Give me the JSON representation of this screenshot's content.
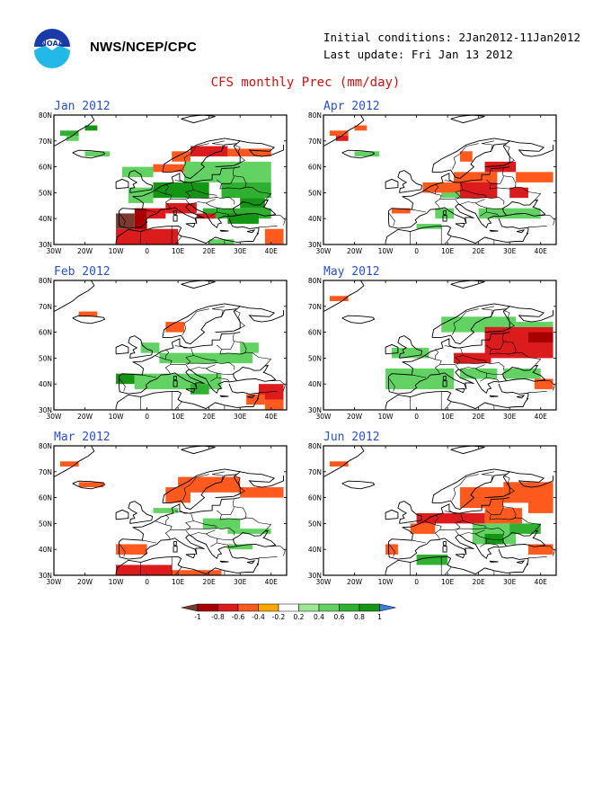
{
  "header": {
    "agency": "NWS/NCEP/CPC",
    "initial_conditions": "Initial conditions: 2Jan2012-11Jan2012",
    "last_update": "Last update: Fri Jan 13 2012",
    "title": "CFS monthly Prec (mm/day)"
  },
  "logo": {
    "icon": "noaa-logo-icon"
  },
  "axes": {
    "x_ticks": [
      "30W",
      "20W",
      "10W",
      "0",
      "10E",
      "20E",
      "30E",
      "40E"
    ],
    "y_ticks": [
      "80N",
      "70N",
      "60N",
      "50N",
      "40N",
      "30N"
    ]
  },
  "colors": {
    "ocean_grid": "#b0b0b0",
    "coast": "#000000"
  },
  "panels": [
    {
      "id": "jan",
      "title": "Jan 2012",
      "anoms": [
        {
          "lon": -28,
          "lat": 72,
          "lon2": -22,
          "lat2": 74,
          "v": 0.6
        },
        {
          "lon": -26,
          "lat": 70,
          "lon2": -22,
          "lat2": 72,
          "v": 0.4
        },
        {
          "lon": -20,
          "lat": 74,
          "lon2": -16,
          "lat2": 76,
          "v": 0.8
        },
        {
          "lon": -20,
          "lat": 64,
          "lon2": -12,
          "lat2": 66,
          "v": 0.4
        },
        {
          "lon": 8,
          "lat": 62,
          "lon2": 14,
          "lat2": 66,
          "v": -0.4
        },
        {
          "lon": 14,
          "lat": 64,
          "lon2": 26,
          "lat2": 68,
          "v": -0.6
        },
        {
          "lon": 26,
          "lat": 64,
          "lon2": 40,
          "lat2": 67,
          "v": -0.4
        },
        {
          "lon": 2,
          "lat": 58,
          "lon2": 12,
          "lat2": 61,
          "v": -0.4
        },
        {
          "lon": -8,
          "lat": 56,
          "lon2": 2,
          "lat2": 60,
          "v": 0.4
        },
        {
          "lon": 12,
          "lat": 54,
          "lon2": 40,
          "lat2": 62,
          "v": 0.4
        },
        {
          "lon": 24,
          "lat": 48,
          "lon2": 40,
          "lat2": 54,
          "v": 0.6
        },
        {
          "lon": 2,
          "lat": 48,
          "lon2": 20,
          "lat2": 54,
          "v": 0.8
        },
        {
          "lon": -6,
          "lat": 46,
          "lon2": 2,
          "lat2": 52,
          "v": 0.4
        },
        {
          "lon": 30,
          "lat": 44,
          "lon2": 38,
          "lat2": 48,
          "v": 0.8
        },
        {
          "lon": 18,
          "lat": 40,
          "lon2": 40,
          "lat2": 44,
          "v": 0.6
        },
        {
          "lon": 26,
          "lat": 38,
          "lon2": 36,
          "lat2": 42,
          "v": 0.8
        },
        {
          "lon": -10,
          "lat": 36,
          "lon2": -4,
          "lat2": 42,
          "v": -1.0
        },
        {
          "lon": -4,
          "lat": 34,
          "lon2": 0,
          "lat2": 44,
          "v": -0.8
        },
        {
          "lon": 0,
          "lat": 40,
          "lon2": 6,
          "lat2": 44,
          "v": -0.6
        },
        {
          "lon": 6,
          "lat": 42,
          "lon2": 16,
          "lat2": 46,
          "v": -0.6
        },
        {
          "lon": -10,
          "lat": 30,
          "lon2": 10,
          "lat2": 36,
          "v": -0.6
        },
        {
          "lon": 16,
          "lat": 40,
          "lon2": 22,
          "lat2": 42,
          "v": -0.6
        },
        {
          "lon": 38,
          "lat": 30,
          "lon2": 44,
          "lat2": 36,
          "v": -0.4
        },
        {
          "lon": 20,
          "lat": 30,
          "lon2": 28,
          "lat2": 32,
          "v": 0.4
        }
      ]
    },
    {
      "id": "apr",
      "title": "Apr 2012",
      "anoms": [
        {
          "lon": -28,
          "lat": 72,
          "lon2": -22,
          "lat2": 74,
          "v": -0.4
        },
        {
          "lon": -26,
          "lat": 70,
          "lon2": -22,
          "lat2": 72,
          "v": -0.6
        },
        {
          "lon": -20,
          "lat": 74,
          "lon2": -16,
          "lat2": 76,
          "v": -0.4
        },
        {
          "lon": -20,
          "lat": 64,
          "lon2": -12,
          "lat2": 66,
          "v": 0.4
        },
        {
          "lon": 14,
          "lat": 62,
          "lon2": 18,
          "lat2": 66,
          "v": -0.4
        },
        {
          "lon": 22,
          "lat": 58,
          "lon2": 32,
          "lat2": 62,
          "v": -0.6
        },
        {
          "lon": 32,
          "lat": 54,
          "lon2": 44,
          "lat2": 58,
          "v": -0.4
        },
        {
          "lon": 12,
          "lat": 54,
          "lon2": 26,
          "lat2": 58,
          "v": -0.4
        },
        {
          "lon": 2,
          "lat": 50,
          "lon2": 24,
          "lat2": 54,
          "v": -0.4
        },
        {
          "lon": 14,
          "lat": 48,
          "lon2": 26,
          "lat2": 54,
          "v": -0.6
        },
        {
          "lon": 30,
          "lat": 48,
          "lon2": 36,
          "lat2": 52,
          "v": -0.6
        },
        {
          "lon": -8,
          "lat": 42,
          "lon2": -2,
          "lat2": 44,
          "v": -0.4
        },
        {
          "lon": 8,
          "lat": 48,
          "lon2": 14,
          "lat2": 50,
          "v": 0.4
        },
        {
          "lon": 6,
          "lat": 40,
          "lon2": 12,
          "lat2": 44,
          "v": 0.4
        },
        {
          "lon": 20,
          "lat": 40,
          "lon2": 40,
          "lat2": 44,
          "v": 0.4
        },
        {
          "lon": 0,
          "lat": 36,
          "lon2": 8,
          "lat2": 38,
          "v": 0.4
        }
      ]
    },
    {
      "id": "feb",
      "title": "Feb 2012",
      "anoms": [
        {
          "lon": -22,
          "lat": 66,
          "lon2": -16,
          "lat2": 68,
          "v": -0.4
        },
        {
          "lon": 6,
          "lat": 60,
          "lon2": 12,
          "lat2": 64,
          "v": -0.4
        },
        {
          "lon": -2,
          "lat": 52,
          "lon2": 4,
          "lat2": 56,
          "v": 0.4
        },
        {
          "lon": 4,
          "lat": 48,
          "lon2": 24,
          "lat2": 52,
          "v": 0.4
        },
        {
          "lon": 24,
          "lat": 48,
          "lon2": 34,
          "lat2": 52,
          "v": 0.4
        },
        {
          "lon": 30,
          "lat": 52,
          "lon2": 36,
          "lat2": 56,
          "v": 0.4
        },
        {
          "lon": -10,
          "lat": 40,
          "lon2": -4,
          "lat2": 44,
          "v": 0.8
        },
        {
          "lon": -4,
          "lat": 38,
          "lon2": 8,
          "lat2": 44,
          "v": 0.4
        },
        {
          "lon": 8,
          "lat": 38,
          "lon2": 24,
          "lat2": 44,
          "v": 0.4
        },
        {
          "lon": 14,
          "lat": 36,
          "lon2": 20,
          "lat2": 40,
          "v": 0.6
        },
        {
          "lon": 36,
          "lat": 34,
          "lon2": 44,
          "lat2": 40,
          "v": -0.6
        },
        {
          "lon": 32,
          "lat": 32,
          "lon2": 38,
          "lat2": 36,
          "v": -0.4
        },
        {
          "lon": 38,
          "lat": 30,
          "lon2": 44,
          "lat2": 34,
          "v": -0.4
        }
      ]
    },
    {
      "id": "may",
      "title": "May 2012",
      "anoms": [
        {
          "lon": -28,
          "lat": 72,
          "lon2": -22,
          "lat2": 74,
          "v": -0.4
        },
        {
          "lon": 8,
          "lat": 60,
          "lon2": 32,
          "lat2": 66,
          "v": 0.4
        },
        {
          "lon": 32,
          "lat": 62,
          "lon2": 44,
          "lat2": 64,
          "v": 0.4
        },
        {
          "lon": 22,
          "lat": 50,
          "lon2": 44,
          "lat2": 62,
          "v": -0.6
        },
        {
          "lon": 36,
          "lat": 56,
          "lon2": 44,
          "lat2": 60,
          "v": -0.8
        },
        {
          "lon": 12,
          "lat": 48,
          "lon2": 24,
          "lat2": 52,
          "v": -0.6
        },
        {
          "lon": -8,
          "lat": 50,
          "lon2": 4,
          "lat2": 54,
          "v": 0.4
        },
        {
          "lon": -10,
          "lat": 38,
          "lon2": 12,
          "lat2": 46,
          "v": 0.4
        },
        {
          "lon": 14,
          "lat": 42,
          "lon2": 26,
          "lat2": 46,
          "v": 0.4
        },
        {
          "lon": 28,
          "lat": 42,
          "lon2": 40,
          "lat2": 46,
          "v": 0.4
        },
        {
          "lon": 38,
          "lat": 38,
          "lon2": 44,
          "lat2": 42,
          "v": -0.4
        }
      ]
    },
    {
      "id": "mar",
      "title": "Mar 2012",
      "anoms": [
        {
          "lon": -28,
          "lat": 72,
          "lon2": -22,
          "lat2": 74,
          "v": -0.4
        },
        {
          "lon": -22,
          "lat": 64,
          "lon2": -14,
          "lat2": 66,
          "v": -0.4
        },
        {
          "lon": 6,
          "lat": 58,
          "lon2": 14,
          "lat2": 64,
          "v": -0.4
        },
        {
          "lon": 10,
          "lat": 62,
          "lon2": 30,
          "lat2": 68,
          "v": -0.4
        },
        {
          "lon": 30,
          "lat": 60,
          "lon2": 44,
          "lat2": 64,
          "v": -0.4
        },
        {
          "lon": 2,
          "lat": 54,
          "lon2": 10,
          "lat2": 56,
          "v": 0.4
        },
        {
          "lon": 18,
          "lat": 48,
          "lon2": 30,
          "lat2": 52,
          "v": 0.4
        },
        {
          "lon": 26,
          "lat": 46,
          "lon2": 40,
          "lat2": 48,
          "v": 0.4
        },
        {
          "lon": -10,
          "lat": 38,
          "lon2": 0,
          "lat2": 42,
          "v": -0.4
        },
        {
          "lon": -10,
          "lat": 30,
          "lon2": 8,
          "lat2": 34,
          "v": -0.6
        },
        {
          "lon": 8,
          "lat": 30,
          "lon2": 24,
          "lat2": 32,
          "v": -0.4
        },
        {
          "lon": 26,
          "lat": 40,
          "lon2": 34,
          "lat2": 42,
          "v": 0.4
        }
      ]
    },
    {
      "id": "jun",
      "title": "Jun 2012",
      "anoms": [
        {
          "lon": -28,
          "lat": 72,
          "lon2": -22,
          "lat2": 74,
          "v": -0.4
        },
        {
          "lon": 14,
          "lat": 56,
          "lon2": 28,
          "lat2": 64,
          "v": -0.4
        },
        {
          "lon": 28,
          "lat": 58,
          "lon2": 44,
          "lat2": 66,
          "v": -0.4
        },
        {
          "lon": 36,
          "lat": 54,
          "lon2": 44,
          "lat2": 60,
          "v": -0.4
        },
        {
          "lon": 0,
          "lat": 50,
          "lon2": 22,
          "lat2": 54,
          "v": -0.6
        },
        {
          "lon": 22,
          "lat": 50,
          "lon2": 34,
          "lat2": 56,
          "v": -0.4
        },
        {
          "lon": -2,
          "lat": 46,
          "lon2": 6,
          "lat2": 50,
          "v": -0.4
        },
        {
          "lon": 18,
          "lat": 42,
          "lon2": 32,
          "lat2": 50,
          "v": 0.4
        },
        {
          "lon": 22,
          "lat": 42,
          "lon2": 28,
          "lat2": 46,
          "v": 0.8
        },
        {
          "lon": 30,
          "lat": 46,
          "lon2": 40,
          "lat2": 50,
          "v": 0.6
        },
        {
          "lon": -10,
          "lat": 38,
          "lon2": -6,
          "lat2": 42,
          "v": -0.4
        },
        {
          "lon": 0,
          "lat": 34,
          "lon2": 10,
          "lat2": 38,
          "v": 0.6
        },
        {
          "lon": 36,
          "lat": 38,
          "lon2": 44,
          "lat2": 42,
          "v": -0.4
        }
      ]
    }
  ],
  "colorbar": {
    "labels": [
      "-1",
      "-0.8",
      "-0.6",
      "-0.4",
      "-0.2",
      "0.2",
      "0.4",
      "0.6",
      "0.8",
      "1"
    ],
    "colors": [
      "#7a3a2e",
      "#a80000",
      "#dc1c1c",
      "#ff5a1e",
      "#ffa500",
      "#ffffff",
      "#9be890",
      "#62d262",
      "#30b030",
      "#149614",
      "#3c7cdc"
    ]
  }
}
